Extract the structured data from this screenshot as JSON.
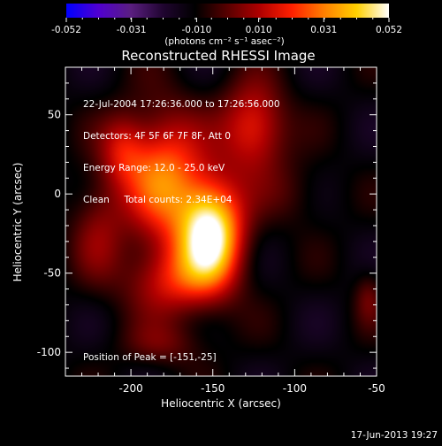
{
  "chart_data": {
    "type": "heatmap",
    "title": "Reconstructed RHESSI Image",
    "xlabel": "Heliocentric X (arcsec)",
    "ylabel": "Heliocentric Y (arcsec)",
    "xlim": [
      -240,
      -50
    ],
    "ylim": [
      -115,
      80
    ],
    "x_ticks": [
      -200,
      -150,
      -100,
      -50
    ],
    "y_ticks": [
      50,
      0,
      -50,
      -100
    ],
    "colorbar": {
      "min": -0.052,
      "max": 0.052,
      "tick_values": [
        -0.052,
        -0.031,
        -0.01,
        0.01,
        0.031,
        0.052
      ],
      "tick_labels": [
        "-0.052",
        "-0.031",
        "-0.010",
        "0.010",
        "0.031",
        "0.052"
      ],
      "units_label": "(photons cm⁻² s⁻¹ asec⁻²)",
      "colormap": [
        "#0000ff",
        "#5000d0",
        "#5a1e80",
        "#200530",
        "#000000",
        "#580000",
        "#b00000",
        "#ff2000",
        "#ff8000",
        "#ffd000",
        "#ffffff"
      ]
    },
    "info_lines": [
      "22-Jul-2004 17:26:36.000 to 17:26:56.000",
      "Detectors: 4F 5F 6F 7F 8F, Att 0",
      "Energy Range: 12.0 - 25.0 keV",
      "Clean     Total counts: 2.34E+04"
    ],
    "peak_label": "Position of Peak = [-151,-25]",
    "peak": {
      "x": -151,
      "y": -25,
      "value": 0.052
    },
    "background_value": -0.012,
    "sources": [
      {
        "x": -151,
        "y": -25,
        "sx": 14,
        "sy": 24,
        "amp": 0.064
      },
      {
        "x": -180,
        "y": 10,
        "sx": 17,
        "sy": 30,
        "amp": 0.04
      },
      {
        "x": -205,
        "y": 28,
        "sx": 10,
        "sy": 16,
        "amp": 0.02
      },
      {
        "x": -125,
        "y": 42,
        "sx": 14,
        "sy": 20,
        "amp": 0.032
      },
      {
        "x": -175,
        "y": -55,
        "sx": 20,
        "sy": 16,
        "amp": 0.024
      },
      {
        "x": -220,
        "y": -20,
        "sx": 12,
        "sy": 25,
        "amp": 0.016
      },
      {
        "x": -180,
        "y": -95,
        "sx": 18,
        "sy": 10,
        "amp": 0.012
      },
      {
        "x": -100,
        "y": 0,
        "sx": 15,
        "sy": 15,
        "amp": 0.008
      },
      {
        "x": -55,
        "y": -65,
        "sx": 6,
        "sy": 12,
        "amp": 0.012
      }
    ],
    "timestamp": "17-Jun-2013 19:27"
  }
}
